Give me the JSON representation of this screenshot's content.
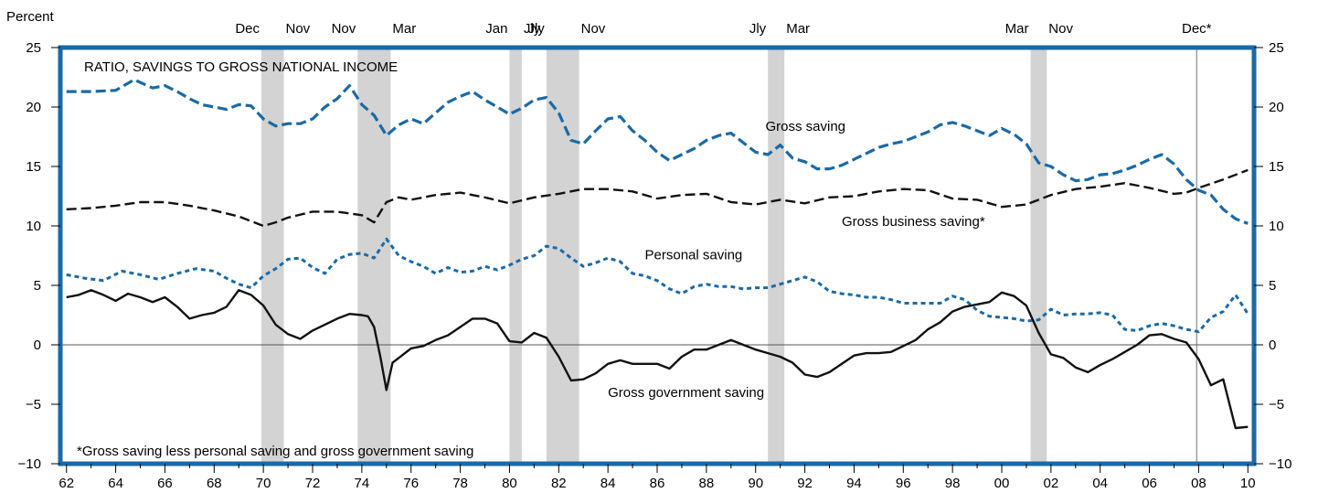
{
  "chart_data": {
    "type": "line",
    "title": "RATIO, SAVINGS TO GROSS NATIONAL INCOME",
    "ylabel": "Percent",
    "note": "*Gross saving less personal saving and gross government saving",
    "ylim": [
      -10,
      25
    ],
    "xlim": [
      1961.75,
      2010.25
    ],
    "yticks": [
      -10,
      -5,
      0,
      5,
      10,
      15,
      20,
      25
    ],
    "ytick_labels": [
      "−10",
      "−5",
      "0",
      "5",
      "10",
      "15",
      "20",
      "25"
    ],
    "xticks": [
      1962,
      1964,
      1966,
      1968,
      1970,
      1972,
      1974,
      1976,
      1978,
      1980,
      1982,
      1984,
      1986,
      1988,
      1990,
      1992,
      1994,
      1996,
      1998,
      2000,
      2002,
      2004,
      2006,
      2008,
      2010
    ],
    "xtick_labels": [
      "62",
      "64",
      "66",
      "68",
      "70",
      "72",
      "74",
      "76",
      "78",
      "80",
      "82",
      "84",
      "86",
      "88",
      "90",
      "92",
      "94",
      "96",
      "98",
      "00",
      "02",
      "04",
      "06",
      "08",
      "10"
    ],
    "grid": false,
    "recessions": [
      {
        "start": 1969.92,
        "end": 1970.83,
        "start_label": "Dec",
        "end_label": "Nov"
      },
      {
        "start": 1973.83,
        "end": 1975.17,
        "start_label": "Nov",
        "end_label": "Mar"
      },
      {
        "start": 1980.0,
        "end": 1980.5,
        "start_label": "Jan",
        "end_label": "Jly"
      },
      {
        "start": 1981.5,
        "end": 1982.83,
        "start_label": "Jly",
        "end_label": "Nov"
      },
      {
        "start": 1990.5,
        "end": 1991.17,
        "start_label": "Jly",
        "end_label": "Mar"
      },
      {
        "start": 2001.17,
        "end": 2001.83,
        "start_label": "Mar",
        "end_label": "Nov"
      }
    ],
    "markers": [
      {
        "x": 2007.92,
        "label": "Dec*"
      }
    ],
    "series": [
      {
        "name": "Gross saving",
        "color": "#1a6aa6",
        "style": "dashed",
        "x": [
          1962,
          1963,
          1964,
          1964.75,
          1965.5,
          1966,
          1966.5,
          1967,
          1967.5,
          1968,
          1968.5,
          1969,
          1969.5,
          1970,
          1970.5,
          1971,
          1971.5,
          1972,
          1972.5,
          1973,
          1973.5,
          1974,
          1974.5,
          1975,
          1975.5,
          1976,
          1976.5,
          1977,
          1977.5,
          1978,
          1978.5,
          1979,
          1979.5,
          1980,
          1980.5,
          1981,
          1981.5,
          1982,
          1982.5,
          1983,
          1983.5,
          1984,
          1984.5,
          1985,
          1985.5,
          1986,
          1986.5,
          1987,
          1987.5,
          1988,
          1988.5,
          1989,
          1989.5,
          1990,
          1990.5,
          1991,
          1991.5,
          1992,
          1992.5,
          1993,
          1993.5,
          1994,
          1994.5,
          1995,
          1995.5,
          1996,
          1996.5,
          1997,
          1997.5,
          1998,
          1998.5,
          1999,
          1999.5,
          2000,
          2000.5,
          2001,
          2001.5,
          2002,
          2002.5,
          2003,
          2003.5,
          2004,
          2004.5,
          2005,
          2005.5,
          2006,
          2006.5,
          2007,
          2007.5,
          2008,
          2008.5,
          2009,
          2009.5,
          2010
        ],
        "y": [
          21.3,
          21.3,
          21.4,
          22.3,
          21.6,
          21.8,
          21.3,
          20.7,
          20.2,
          20.0,
          19.8,
          20.2,
          20.1,
          19.0,
          18.4,
          18.6,
          18.6,
          19.0,
          20.0,
          20.7,
          21.8,
          20.2,
          19.3,
          17.6,
          18.5,
          19.0,
          18.6,
          19.5,
          20.4,
          20.9,
          21.3,
          20.6,
          20.0,
          19.4,
          19.9,
          20.6,
          20.8,
          19.5,
          17.2,
          16.9,
          18.0,
          19.0,
          19.2,
          18.0,
          17.2,
          16.2,
          15.5,
          16.0,
          16.5,
          17.2,
          17.6,
          17.8,
          17.0,
          16.2,
          16.0,
          16.8,
          15.7,
          15.4,
          14.8,
          14.8,
          15.1,
          15.6,
          16.1,
          16.6,
          16.9,
          17.1,
          17.5,
          17.9,
          18.5,
          18.7,
          18.4,
          18.0,
          17.6,
          18.2,
          17.7,
          16.9,
          15.3,
          15.0,
          14.3,
          13.8,
          13.9,
          14.3,
          14.4,
          14.7,
          15.1,
          15.6,
          16.0,
          15.2,
          13.9,
          13.0,
          12.6,
          11.4,
          10.6,
          10.2
        ]
      },
      {
        "name": "Gross business saving*",
        "color": "#111111",
        "style": "dashed",
        "x": [
          1962,
          1963,
          1964,
          1965,
          1966,
          1967,
          1968,
          1969,
          1970,
          1970.5,
          1971,
          1972,
          1973,
          1974,
          1974.5,
          1975,
          1975.5,
          1976,
          1977,
          1978,
          1979,
          1980,
          1981,
          1982,
          1983,
          1984,
          1985,
          1986,
          1987,
          1988,
          1989,
          1990,
          1991,
          1992,
          1993,
          1994,
          1995,
          1996,
          1997,
          1998,
          1999,
          2000,
          2001,
          2002,
          2003,
          2004,
          2005,
          2006,
          2007,
          2007.5,
          2008,
          2009,
          2010
        ],
        "y": [
          11.4,
          11.5,
          11.7,
          12.0,
          12.0,
          11.7,
          11.3,
          10.8,
          10.0,
          10.3,
          10.7,
          11.2,
          11.2,
          10.9,
          10.3,
          12.0,
          12.4,
          12.2,
          12.6,
          12.8,
          12.4,
          11.9,
          12.4,
          12.7,
          13.1,
          13.1,
          12.9,
          12.3,
          12.6,
          12.7,
          12.0,
          11.8,
          12.2,
          11.9,
          12.4,
          12.5,
          12.9,
          13.1,
          13.0,
          12.3,
          12.2,
          11.6,
          11.8,
          12.6,
          13.1,
          13.3,
          13.6,
          13.2,
          12.7,
          12.8,
          13.2,
          13.9,
          14.7
        ]
      },
      {
        "name": "Personal saving",
        "color": "#1a6aa6",
        "style": "dotted",
        "x": [
          1962,
          1962.75,
          1963.5,
          1964.25,
          1965,
          1965.75,
          1966.5,
          1967.25,
          1968,
          1968.5,
          1969,
          1969.5,
          1970,
          1970.5,
          1971,
          1971.5,
          1972,
          1972.5,
          1973,
          1973.5,
          1974,
          1974.5,
          1975,
          1975.5,
          1976,
          1976.5,
          1977,
          1977.5,
          1978,
          1978.5,
          1979,
          1979.5,
          1980,
          1980.5,
          1981,
          1981.5,
          1982,
          1982.5,
          1983,
          1983.5,
          1984,
          1984.5,
          1985,
          1985.5,
          1986,
          1986.5,
          1987,
          1987.5,
          1988,
          1988.5,
          1989,
          1989.5,
          1990,
          1990.5,
          1991,
          1991.5,
          1992,
          1992.5,
          1993,
          1993.5,
          1994,
          1994.5,
          1995,
          1995.5,
          1996,
          1996.5,
          1997,
          1997.5,
          1998,
          1998.5,
          1999,
          1999.5,
          2000,
          2000.5,
          2001,
          2001.5,
          2002,
          2002.5,
          2003,
          2003.5,
          2004,
          2004.5,
          2005,
          2005.5,
          2006,
          2006.5,
          2007,
          2007.5,
          2008,
          2008.5,
          2009,
          2009.5,
          2010
        ],
        "y": [
          5.9,
          5.6,
          5.4,
          6.2,
          5.9,
          5.5,
          6.0,
          6.4,
          6.2,
          5.6,
          5.1,
          4.8,
          5.8,
          6.4,
          7.2,
          7.3,
          6.5,
          6.0,
          7.2,
          7.6,
          7.7,
          7.3,
          8.9,
          7.5,
          7.0,
          6.6,
          6.0,
          6.5,
          6.1,
          6.2,
          6.6,
          6.3,
          6.7,
          7.2,
          7.5,
          8.3,
          8.1,
          7.3,
          6.6,
          6.9,
          7.3,
          7.0,
          6.0,
          5.8,
          5.4,
          4.7,
          4.3,
          4.9,
          5.1,
          4.9,
          4.9,
          4.7,
          4.8,
          4.8,
          5.1,
          5.4,
          5.7,
          5.3,
          4.5,
          4.3,
          4.2,
          4.0,
          4.0,
          3.8,
          3.5,
          3.5,
          3.5,
          3.5,
          4.1,
          3.8,
          2.9,
          2.4,
          2.3,
          2.2,
          2.0,
          2.1,
          3.0,
          2.5,
          2.6,
          2.6,
          2.7,
          2.5,
          1.3,
          1.2,
          1.6,
          1.8,
          1.6,
          1.3,
          1.1,
          2.3,
          2.8,
          4.2,
          2.6
        ]
      },
      {
        "name": "Gross government saving",
        "color": "#111111",
        "style": "solid",
        "x": [
          1962,
          1962.5,
          1963,
          1963.5,
          1964,
          1964.5,
          1965,
          1965.5,
          1966,
          1966.5,
          1967,
          1967.5,
          1968,
          1968.5,
          1969,
          1969.5,
          1970,
          1970.5,
          1971,
          1971.5,
          1972,
          1972.5,
          1973,
          1973.5,
          1974,
          1974.25,
          1974.5,
          1974.75,
          1975,
          1975.25,
          1975.5,
          1976,
          1976.5,
          1977,
          1977.5,
          1978,
          1978.5,
          1979,
          1979.5,
          1980,
          1980.5,
          1981,
          1981.5,
          1982,
          1982.5,
          1983,
          1983.5,
          1984,
          1984.5,
          1985,
          1985.5,
          1986,
          1986.5,
          1987,
          1987.5,
          1988,
          1988.5,
          1989,
          1989.5,
          1990,
          1990.5,
          1991,
          1991.5,
          1992,
          1992.5,
          1993,
          1993.5,
          1994,
          1994.5,
          1995,
          1995.5,
          1996,
          1996.5,
          1997,
          1997.5,
          1998,
          1998.5,
          1999,
          1999.5,
          2000,
          2000.5,
          2001,
          2001.5,
          2002,
          2002.5,
          2003,
          2003.5,
          2004,
          2004.5,
          2005,
          2005.5,
          2006,
          2006.5,
          2007,
          2007.5,
          2008,
          2008.5,
          2009,
          2009.5,
          2010
        ],
        "y": [
          4.0,
          4.2,
          4.6,
          4.2,
          3.7,
          4.3,
          4.0,
          3.6,
          4.0,
          3.2,
          2.2,
          2.5,
          2.7,
          3.2,
          4.6,
          4.2,
          3.3,
          1.7,
          0.9,
          0.5,
          1.2,
          1.7,
          2.2,
          2.6,
          2.5,
          2.4,
          1.5,
          -1.0,
          -3.8,
          -1.5,
          -1.1,
          -0.3,
          -0.1,
          0.4,
          0.8,
          1.5,
          2.2,
          2.2,
          1.8,
          0.3,
          0.2,
          1.0,
          0.6,
          -1.0,
          -3.0,
          -2.9,
          -2.4,
          -1.6,
          -1.3,
          -1.6,
          -1.6,
          -1.6,
          -2.0,
          -1.0,
          -0.4,
          -0.4,
          0.0,
          0.4,
          0.0,
          -0.4,
          -0.7,
          -1.0,
          -1.5,
          -2.5,
          -2.7,
          -2.3,
          -1.6,
          -0.9,
          -0.7,
          -0.7,
          -0.6,
          -0.1,
          0.4,
          1.3,
          1.9,
          2.8,
          3.2,
          3.4,
          3.6,
          4.4,
          4.1,
          3.3,
          1.0,
          -0.8,
          -1.1,
          -1.9,
          -2.3,
          -1.7,
          -1.2,
          -0.6,
          0.0,
          0.8,
          0.9,
          0.5,
          0.2,
          -1.2,
          -3.4,
          -2.9,
          -7.0,
          -6.9
        ]
      }
    ],
    "annotations": [
      {
        "text": "Gross saving",
        "x": 1990.4,
        "y": 18.0
      },
      {
        "text": "Gross business saving*",
        "x": 1993.5,
        "y": 10.0
      },
      {
        "text": "Personal saving",
        "x": 1985.5,
        "y": 7.2
      },
      {
        "text": "Gross government saving",
        "x": 1984.0,
        "y": -4.4
      }
    ]
  },
  "colors": {
    "frame": "#1a6aa6",
    "recession_shade": "#d3d3d3",
    "zero_line": "#555555"
  }
}
